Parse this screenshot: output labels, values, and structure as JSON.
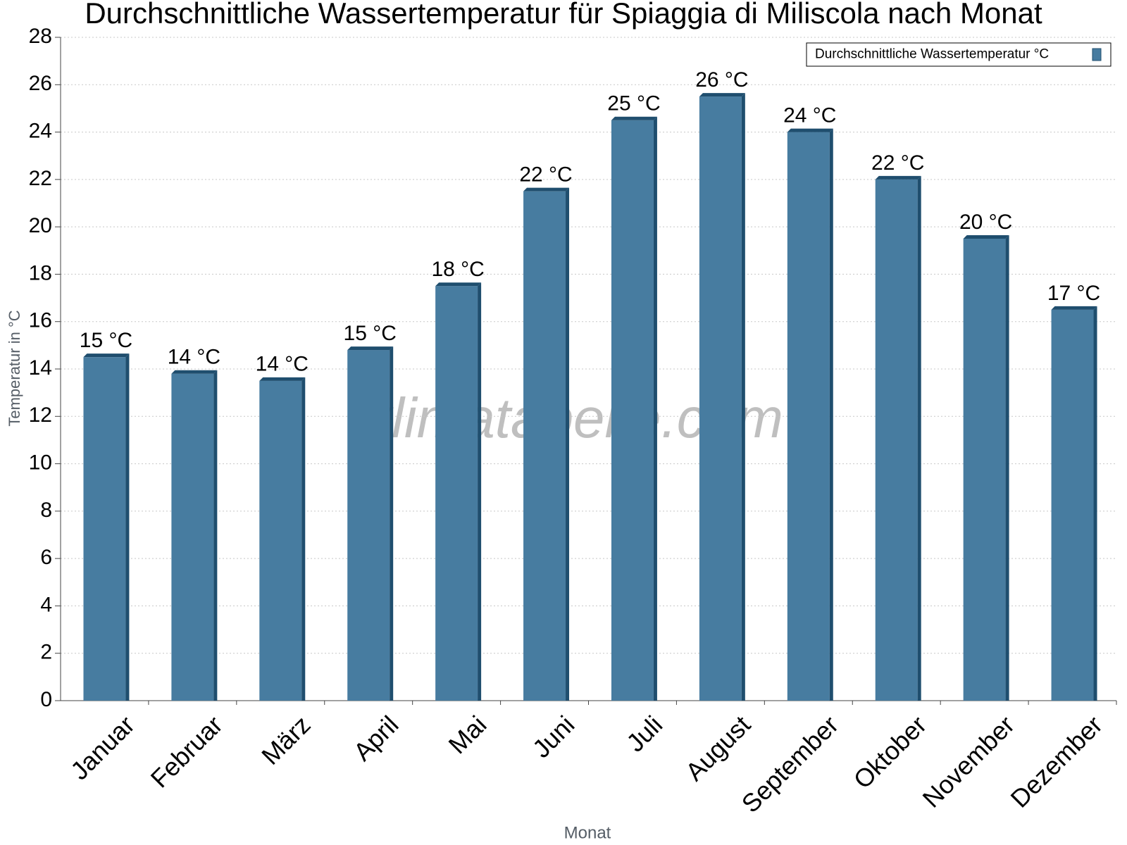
{
  "chart_data": {
    "type": "bar",
    "title": "Durchschnittliche Wassertemperatur für Spiaggia di Miliscola nach Monat",
    "x_label": "Monat",
    "y_label": "Temperatur in °C",
    "watermark": "klimatabelle.com",
    "categories": [
      "Januar",
      "Februar",
      "März",
      "April",
      "Mai",
      "Juni",
      "Juli",
      "August",
      "September",
      "Oktober",
      "November",
      "Dezember"
    ],
    "series": [
      {
        "name": "Durchschnittliche Wassertemperatur °C",
        "color": "#477ca0",
        "values": [
          14.5,
          13.8,
          13.5,
          14.8,
          17.5,
          21.5,
          24.5,
          25.5,
          24.0,
          22.0,
          19.5,
          16.5
        ],
        "value_labels": [
          "15 °C",
          "14 °C",
          "14 °C",
          "15 °C",
          "18 °C",
          "22 °C",
          "25 °C",
          "26 °C",
          "24 °C",
          "22 °C",
          "20 °C",
          "17 °C"
        ]
      }
    ],
    "ylim": [
      0,
      28
    ],
    "yticks": [
      0,
      2,
      4,
      6,
      8,
      10,
      12,
      14,
      16,
      18,
      20,
      22,
      24,
      26,
      28
    ],
    "grid": true,
    "legend": "top-right"
  }
}
